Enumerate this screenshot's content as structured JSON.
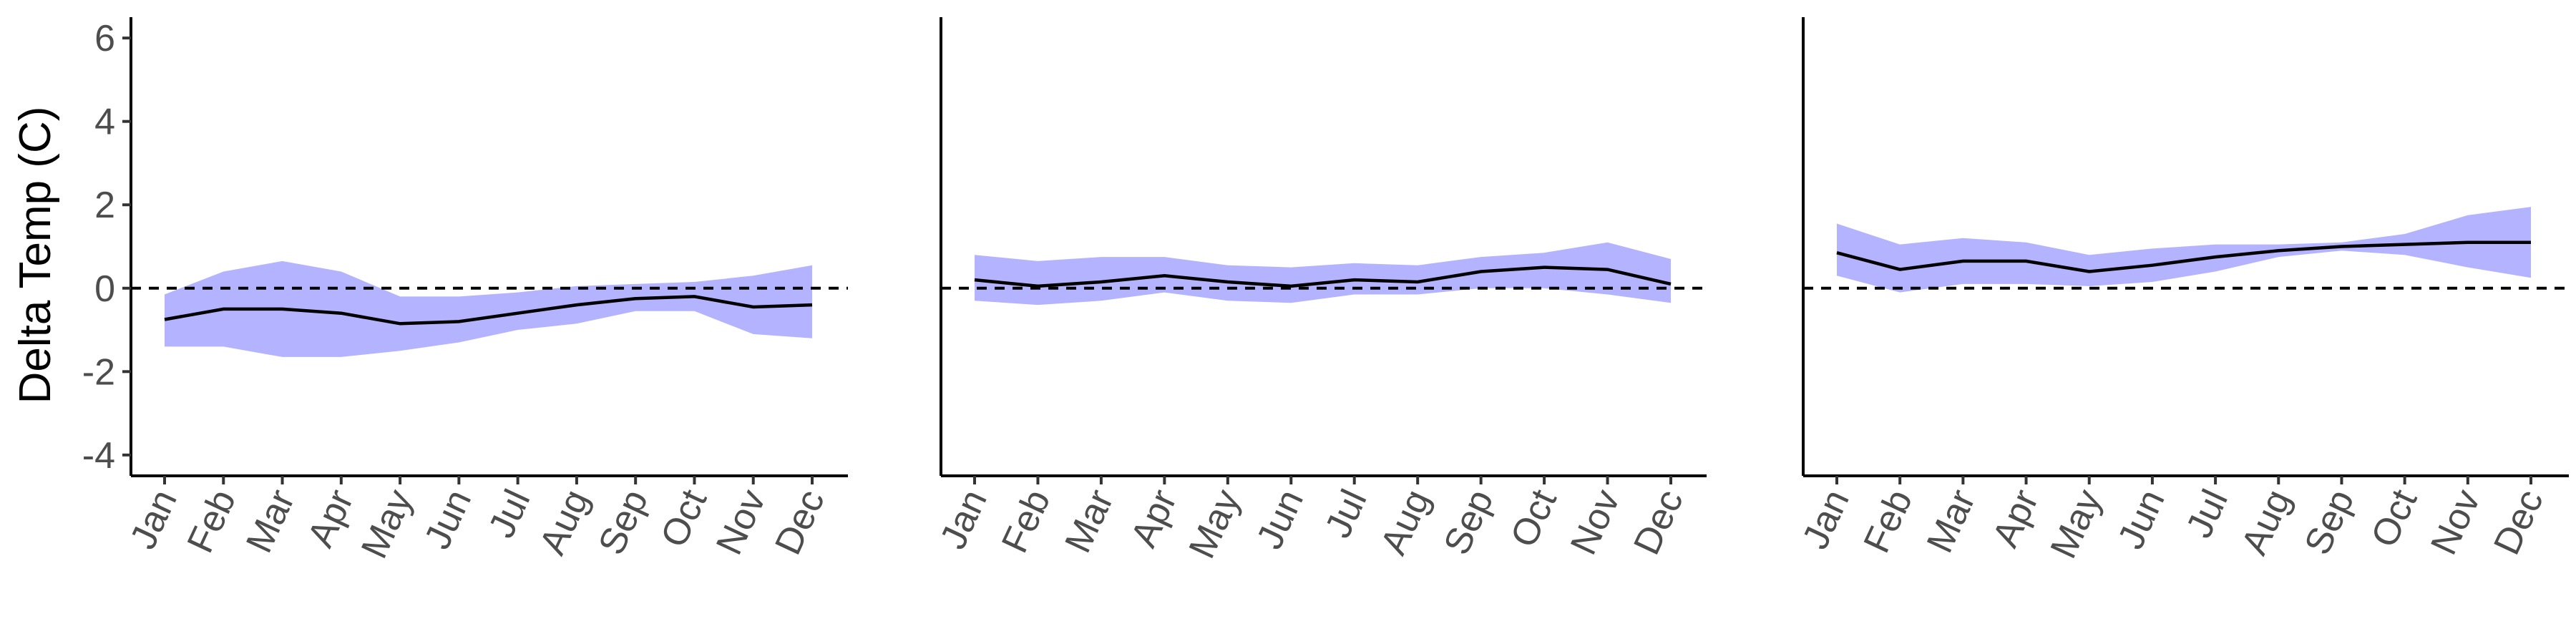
{
  "chart_data": [
    {
      "type": "line",
      "ylabel": "Delta Temp (C)",
      "categories": [
        "Jan",
        "Feb",
        "Mar",
        "Apr",
        "May",
        "Jun",
        "Jul",
        "Aug",
        "Sep",
        "Oct",
        "Nov",
        "Dec"
      ],
      "series": [
        {
          "values": [
            -0.75,
            -0.5,
            -0.5,
            -0.6,
            -0.85,
            -0.8,
            -0.6,
            -0.4,
            -0.25,
            -0.2,
            -0.45,
            -0.4
          ],
          "upper": [
            -0.15,
            0.4,
            0.65,
            0.4,
            -0.2,
            -0.2,
            -0.1,
            0.05,
            0.1,
            0.15,
            0.3,
            0.55
          ],
          "lower": [
            -1.4,
            -1.4,
            -1.65,
            -1.65,
            -1.5,
            -1.3,
            -1.0,
            -0.85,
            -0.55,
            -0.55,
            -1.1,
            -1.2
          ]
        }
      ],
      "yticks": [
        6,
        4,
        2,
        0,
        -2,
        -4
      ],
      "ylim": [
        -4.5,
        6.5
      ],
      "reference_line": 0,
      "line_color": "#000000",
      "band_color": "#b3b3ff"
    },
    {
      "type": "line",
      "categories": [
        "Jan",
        "Feb",
        "Mar",
        "Apr",
        "May",
        "Jun",
        "Jul",
        "Aug",
        "Sep",
        "Oct",
        "Nov",
        "Dec"
      ],
      "series": [
        {
          "values": [
            0.2,
            0.05,
            0.15,
            0.3,
            0.15,
            0.05,
            0.2,
            0.15,
            0.4,
            0.5,
            0.45,
            0.1
          ],
          "upper": [
            0.8,
            0.65,
            0.75,
            0.75,
            0.55,
            0.5,
            0.6,
            0.55,
            0.75,
            0.85,
            1.1,
            0.7
          ],
          "lower": [
            -0.3,
            -0.4,
            -0.3,
            -0.1,
            -0.3,
            -0.35,
            -0.15,
            -0.15,
            0.0,
            0.0,
            -0.15,
            -0.35
          ]
        }
      ],
      "ylim": [
        -4.5,
        6.5
      ],
      "reference_line": 0,
      "line_color": "#000000",
      "band_color": "#b3b3ff"
    },
    {
      "type": "line",
      "categories": [
        "Jan",
        "Feb",
        "Mar",
        "Apr",
        "May",
        "Jun",
        "Jul",
        "Aug",
        "Sep",
        "Oct",
        "Nov",
        "Dec"
      ],
      "series": [
        {
          "values": [
            0.85,
            0.45,
            0.65,
            0.65,
            0.4,
            0.55,
            0.75,
            0.9,
            1.0,
            1.05,
            1.1,
            1.1
          ],
          "upper": [
            1.55,
            1.05,
            1.2,
            1.1,
            0.8,
            0.95,
            1.05,
            1.05,
            1.1,
            1.3,
            1.75,
            1.95
          ],
          "lower": [
            0.3,
            -0.1,
            0.1,
            0.1,
            0.05,
            0.15,
            0.4,
            0.75,
            0.9,
            0.8,
            0.5,
            0.25
          ]
        }
      ],
      "ylim": [
        -4.5,
        6.5
      ],
      "reference_line": 0,
      "line_color": "#000000",
      "band_color": "#b3b3ff"
    }
  ]
}
